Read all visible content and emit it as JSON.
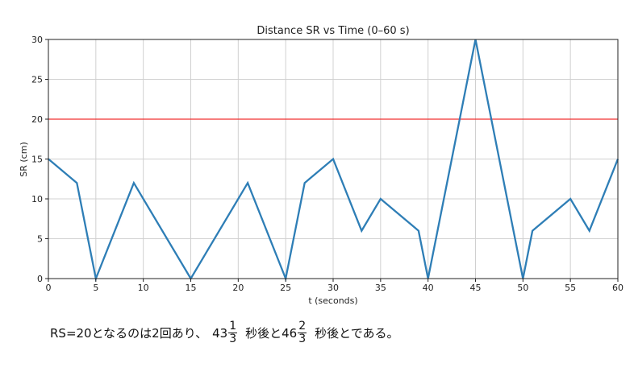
{
  "chart_data": {
    "type": "line",
    "title": "Distance SR vs Time (0–60 s)",
    "xlabel": "t (seconds)",
    "ylabel": "SR (cm)",
    "xlim": [
      0,
      60
    ],
    "ylim": [
      0,
      30
    ],
    "xticks": [
      0,
      5,
      10,
      15,
      20,
      25,
      30,
      35,
      40,
      45,
      50,
      55,
      60
    ],
    "yticks": [
      0,
      5,
      10,
      15,
      20,
      25,
      30
    ],
    "grid": true,
    "series": [
      {
        "name": "SR",
        "color": "#2e7eb6",
        "x": [
          0,
          3,
          5,
          9,
          15,
          21,
          25,
          27,
          30,
          33,
          35,
          39,
          40,
          45,
          50,
          51,
          55,
          57,
          60
        ],
        "y": [
          15,
          12,
          0,
          12,
          0,
          12,
          0,
          12,
          15,
          6,
          10,
          6,
          0,
          30,
          0,
          6,
          10,
          6,
          15
        ]
      }
    ],
    "hlines": [
      {
        "y": 20,
        "color": "#f03030"
      }
    ]
  },
  "caption": {
    "prefix": "RS=20となるのは2回あり、",
    "first_whole": "43",
    "first_num": "1",
    "first_den": "3",
    "middle": "秒後と",
    "second_whole": "46",
    "second_num": "2",
    "second_den": "3",
    "suffix": "秒後とである。"
  }
}
